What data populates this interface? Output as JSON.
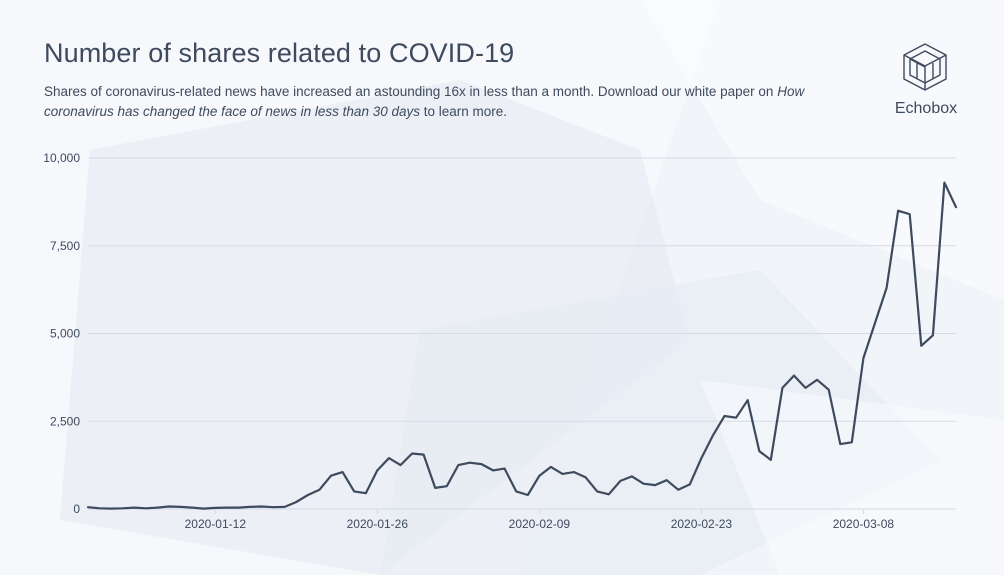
{
  "header": {
    "title": "Number of shares related to COVID-19",
    "subtitle_part1": "Shares of coronavirus-related news have increased an astounding 16x in less than a month. Download our white paper on ",
    "subtitle_emphasis": "How coronavirus has changed the face of news in less than 30 days",
    "subtitle_part2": " to learn more."
  },
  "brand": {
    "name": "Echobox",
    "logo_icon": "cube-logo-icon",
    "color": "#3e4a5e"
  },
  "colors": {
    "line": "#3e4a5e",
    "gridline": "#d5dbe5",
    "axis_text": "#3e4a5e",
    "background": "#f1f4f9"
  },
  "chart_data": {
    "type": "line",
    "title": "Number of shares related to COVID-19",
    "xlabel": "",
    "ylabel": "",
    "ylim": [
      0,
      10000
    ],
    "yticks": [
      0,
      2500,
      5000,
      7500,
      10000
    ],
    "ytick_labels": [
      "0",
      "2,500",
      "5,000",
      "7,500",
      "10,000"
    ],
    "xlim": [
      "2020-01-01",
      "2020-03-16"
    ],
    "xticks": [
      "2020-01-12",
      "2020-01-26",
      "2020-02-09",
      "2020-02-23",
      "2020-03-08"
    ],
    "xtick_labels": [
      "2020-01-12",
      "2020-01-26",
      "2020-02-09",
      "2020-02-23",
      "2020-03-08"
    ],
    "grid": "horizontal",
    "legend": "none",
    "series": [
      {
        "x": [
          "2020-01-01",
          "2020-01-02",
          "2020-01-03",
          "2020-01-04",
          "2020-01-05",
          "2020-01-06",
          "2020-01-07",
          "2020-01-08",
          "2020-01-09",
          "2020-01-10",
          "2020-01-11",
          "2020-01-12",
          "2020-01-13",
          "2020-01-14",
          "2020-01-15",
          "2020-01-16",
          "2020-01-17",
          "2020-01-18",
          "2020-01-19",
          "2020-01-20",
          "2020-01-21",
          "2020-01-22",
          "2020-01-23",
          "2020-01-24",
          "2020-01-25",
          "2020-01-26",
          "2020-01-27",
          "2020-01-28",
          "2020-01-29",
          "2020-01-30",
          "2020-01-31",
          "2020-02-01",
          "2020-02-02",
          "2020-02-03",
          "2020-02-04",
          "2020-02-05",
          "2020-02-06",
          "2020-02-07",
          "2020-02-08",
          "2020-02-09",
          "2020-02-10",
          "2020-02-11",
          "2020-02-12",
          "2020-02-13",
          "2020-02-14",
          "2020-02-15",
          "2020-02-16",
          "2020-02-17",
          "2020-02-18",
          "2020-02-19",
          "2020-02-20",
          "2020-02-21",
          "2020-02-22",
          "2020-02-23",
          "2020-02-24",
          "2020-02-25",
          "2020-02-26",
          "2020-02-27",
          "2020-02-28",
          "2020-02-29",
          "2020-03-01",
          "2020-03-02",
          "2020-03-03",
          "2020-03-04",
          "2020-03-05",
          "2020-03-06",
          "2020-03-07",
          "2020-03-08",
          "2020-03-09",
          "2020-03-10",
          "2020-03-11",
          "2020-03-12",
          "2020-03-13",
          "2020-03-14",
          "2020-03-15",
          "2020-03-16"
        ],
        "values": [
          50,
          20,
          10,
          20,
          40,
          20,
          40,
          70,
          60,
          40,
          10,
          30,
          40,
          40,
          60,
          70,
          50,
          60,
          200,
          400,
          550,
          950,
          1050,
          500,
          450,
          1100,
          1450,
          1250,
          1580,
          1550,
          600,
          650,
          1250,
          1320,
          1280,
          1100,
          1150,
          500,
          400,
          950,
          1200,
          1000,
          1050,
          900,
          500,
          420,
          800,
          930,
          720,
          680,
          820,
          550,
          700,
          1450,
          2100,
          2650,
          2600,
          3100,
          1650,
          1400,
          3450,
          3800,
          3450,
          3680,
          3400,
          1850,
          1900,
          4300,
          5300,
          6300,
          8500,
          8400,
          4650,
          4950,
          9300,
          8600
        ]
      }
    ]
  }
}
